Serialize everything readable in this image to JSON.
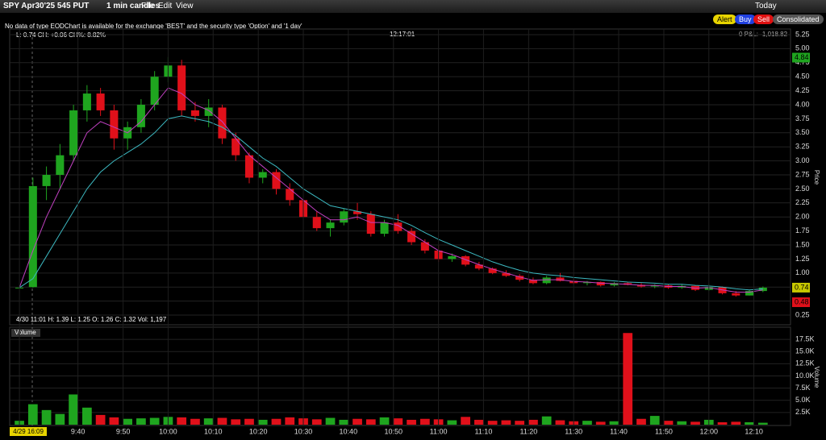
{
  "toolbar": {
    "symbol": "SPY Apr30'25 545 PUT",
    "interval": "1 min candles",
    "menu": [
      "File",
      "Edit",
      "View"
    ],
    "range": "Today",
    "buttons": [
      "Alert",
      "Buy",
      "Sell"
    ],
    "mode": "Consolidated"
  },
  "info": {
    "notice": "No data of type EODChart is available for the exchange 'BEST' and the security type 'Option' and '1 day'",
    "quote": "L: 0.74 CH: +0.06 CH%: 8.82%",
    "clock": "12:17:01",
    "pnl": "0 P&L: -1,018.82",
    "ohlc": "4/30 11:01 H: 1.39 L: 1.25 O: 1.26 C: 1.32 Vol: 1,197"
  },
  "chart_data": [
    {
      "type": "candlestick",
      "axis_title": "Price",
      "up_color": "#1fa51f",
      "down_color": "#e0101a",
      "open": [
        0.74,
        0.75,
        2.55,
        2.75,
        3.1,
        3.9,
        4.2,
        3.9,
        3.4,
        3.6,
        4.0,
        4.5,
        4.7,
        3.9,
        3.8,
        3.95,
        3.4,
        3.1,
        2.7,
        2.8,
        2.5,
        2.3,
        2.0,
        1.8,
        1.9,
        2.1,
        2.05,
        1.7,
        1.9,
        1.75,
        1.55,
        1.4,
        1.25,
        1.3,
        1.15,
        1.08,
        1.0,
        0.95,
        0.88,
        0.82,
        0.92,
        0.86,
        0.82,
        0.84,
        0.78,
        0.82,
        0.79,
        0.76,
        0.78,
        0.74,
        0.77,
        0.7,
        0.75,
        0.64,
        0.6,
        0.68
      ],
      "high": [
        0.76,
        2.7,
        2.9,
        3.3,
        4.0,
        4.35,
        4.3,
        4.0,
        3.7,
        4.1,
        4.6,
        4.85,
        4.8,
        4.05,
        4.1,
        4.0,
        3.5,
        3.15,
        2.85,
        2.85,
        2.6,
        2.35,
        2.1,
        1.95,
        2.15,
        2.25,
        2.1,
        1.95,
        2.05,
        1.8,
        1.6,
        1.5,
        1.35,
        1.32,
        1.2,
        1.1,
        1.05,
        0.98,
        0.92,
        0.95,
        1.0,
        0.9,
        0.86,
        0.85,
        0.84,
        0.84,
        0.82,
        0.8,
        0.8,
        0.8,
        0.78,
        0.8,
        0.76,
        0.68,
        0.7,
        0.76
      ],
      "low": [
        0.72,
        0.74,
        2.3,
        2.5,
        3.0,
        3.7,
        3.8,
        3.2,
        3.2,
        3.5,
        3.9,
        4.4,
        3.8,
        3.7,
        3.6,
        3.3,
        3.0,
        2.6,
        2.6,
        2.4,
        2.2,
        1.95,
        1.75,
        1.65,
        1.85,
        1.95,
        1.65,
        1.65,
        1.7,
        1.5,
        1.35,
        1.2,
        1.2,
        1.12,
        1.05,
        0.98,
        0.93,
        0.85,
        0.8,
        0.8,
        0.85,
        0.8,
        0.78,
        0.76,
        0.76,
        0.78,
        0.74,
        0.73,
        0.72,
        0.72,
        0.68,
        0.68,
        0.62,
        0.58,
        0.6,
        0.66
      ],
      "close": [
        0.74,
        2.55,
        2.75,
        3.1,
        3.9,
        4.2,
        3.9,
        3.4,
        3.6,
        4.0,
        4.5,
        4.7,
        3.9,
        3.8,
        3.95,
        3.4,
        3.1,
        2.7,
        2.8,
        2.5,
        2.3,
        2.0,
        1.8,
        1.9,
        2.1,
        2.05,
        1.7,
        1.9,
        1.75,
        1.55,
        1.4,
        1.25,
        1.3,
        1.15,
        1.08,
        1.0,
        0.95,
        0.88,
        0.82,
        0.92,
        0.86,
        0.82,
        0.84,
        0.78,
        0.82,
        0.79,
        0.76,
        0.78,
        0.74,
        0.77,
        0.7,
        0.75,
        0.64,
        0.6,
        0.68,
        0.74
      ],
      "overlays": [
        {
          "color": "#c040c0",
          "values": [
            0.74,
            1.4,
            2.0,
            2.5,
            3.0,
            3.5,
            3.7,
            3.6,
            3.5,
            3.7,
            4.0,
            4.3,
            4.2,
            4.0,
            3.9,
            3.7,
            3.4,
            3.1,
            2.9,
            2.7,
            2.5,
            2.3,
            2.1,
            1.95,
            1.95,
            2.0,
            1.9,
            1.9,
            1.85,
            1.7,
            1.55,
            1.4,
            1.33,
            1.24,
            1.15,
            1.07,
            1.0,
            0.93,
            0.87,
            0.88,
            0.88,
            0.85,
            0.84,
            0.82,
            0.81,
            0.8,
            0.78,
            0.78,
            0.76,
            0.76,
            0.73,
            0.74,
            0.7,
            0.66,
            0.66,
            0.7
          ]
        },
        {
          "color": "#3cb8c0",
          "values": [
            0.74,
            0.9,
            1.3,
            1.7,
            2.1,
            2.5,
            2.8,
            3.0,
            3.15,
            3.3,
            3.5,
            3.75,
            3.8,
            3.75,
            3.7,
            3.6,
            3.45,
            3.25,
            3.05,
            2.9,
            2.7,
            2.5,
            2.35,
            2.2,
            2.15,
            2.1,
            2.05,
            2.0,
            1.95,
            1.85,
            1.72,
            1.6,
            1.5,
            1.4,
            1.3,
            1.2,
            1.12,
            1.05,
            1.0,
            0.97,
            0.95,
            0.92,
            0.9,
            0.88,
            0.86,
            0.84,
            0.83,
            0.82,
            0.8,
            0.8,
            0.78,
            0.77,
            0.75,
            0.72,
            0.7,
            0.72
          ]
        }
      ],
      "price_tags": [
        {
          "value": 4.84,
          "color": "#1fa51f"
        },
        {
          "value": 0.74,
          "color": "#c8c800"
        },
        {
          "value": 0.48,
          "color": "#e0101a"
        }
      ],
      "xlim": [
        -0.72,
        57.04
      ],
      "ylim": [
        0.15,
        5.35
      ],
      "yticks": [
        0.25,
        {
          "value": 0.5,
          "label": "0.50"
        },
        0.75,
        {
          "value": 1,
          "label": "1.00"
        },
        1.25,
        {
          "value": 1.5,
          "label": "1.50"
        },
        1.75,
        {
          "value": 2,
          "label": "2.00"
        },
        2.25,
        {
          "value": 2.5,
          "label": "2.50"
        },
        2.75,
        {
          "value": 3,
          "label": "3.00"
        },
        3.25,
        {
          "value": 3.5,
          "label": "3.50"
        },
        3.75,
        {
          "value": 4,
          "label": "4.00"
        },
        4.25,
        {
          "value": 4.5,
          "label": "4.50"
        },
        4.75,
        {
          "value": 5,
          "label": "5.00"
        },
        5.25
      ],
      "grid": true
    },
    {
      "type": "bar",
      "title": "Volume",
      "axis_title": "Volume",
      "values": [
        800,
        4200,
        3000,
        2200,
        6200,
        3500,
        2000,
        1500,
        1200,
        1300,
        1400,
        1600,
        1500,
        1200,
        1300,
        1400,
        1100,
        1200,
        1000,
        1200,
        1500,
        1300,
        1100,
        1400,
        1000,
        1200,
        1100,
        1500,
        1300,
        1000,
        1200,
        1100,
        900,
        1600,
        1000,
        800,
        900,
        800,
        1000,
        1700,
        900,
        700,
        800,
        600,
        700,
        18800,
        1200,
        1800,
        800,
        700,
        600,
        1000,
        500,
        600,
        500,
        400
      ],
      "xlim": [
        -0.72,
        57.04
      ],
      "ylim": [
        0,
        19500
      ],
      "yticks": [
        {
          "value": 2500,
          "label": "2.5K"
        },
        {
          "value": 5000,
          "label": "5.0K"
        },
        {
          "value": 7500,
          "label": "7.5K"
        },
        {
          "value": 10000,
          "label": "10.0K"
        },
        {
          "value": 12500,
          "label": "12.5K"
        },
        {
          "value": 15000,
          "label": "15.0K"
        },
        {
          "value": 17500,
          "label": "17.5K"
        }
      ],
      "xticks": [
        {
          "value": 0,
          "label": "4/29 16:09"
        },
        {
          "value": 4.33,
          "label": "9:40"
        },
        {
          "value": 7.67,
          "label": "9:50"
        },
        {
          "value": 11,
          "label": "10:00"
        },
        {
          "value": 14.33,
          "label": "10:10"
        },
        {
          "value": 17.67,
          "label": "10:20"
        },
        {
          "value": 21,
          "label": "10:30"
        },
        {
          "value": 24.33,
          "label": "10:40"
        },
        {
          "value": 27.67,
          "label": "10:50"
        },
        {
          "value": 31,
          "label": "11:00"
        },
        {
          "value": 34.33,
          "label": "11:10"
        },
        {
          "value": 37.67,
          "label": "11:20"
        },
        {
          "value": 41,
          "label": "11:30"
        },
        {
          "value": 44.33,
          "label": "11:40"
        },
        {
          "value": 47.67,
          "label": "11:50"
        },
        {
          "value": 51,
          "label": "12:00"
        },
        {
          "value": 54.33,
          "label": "12:10"
        }
      ],
      "grid": true
    }
  ]
}
